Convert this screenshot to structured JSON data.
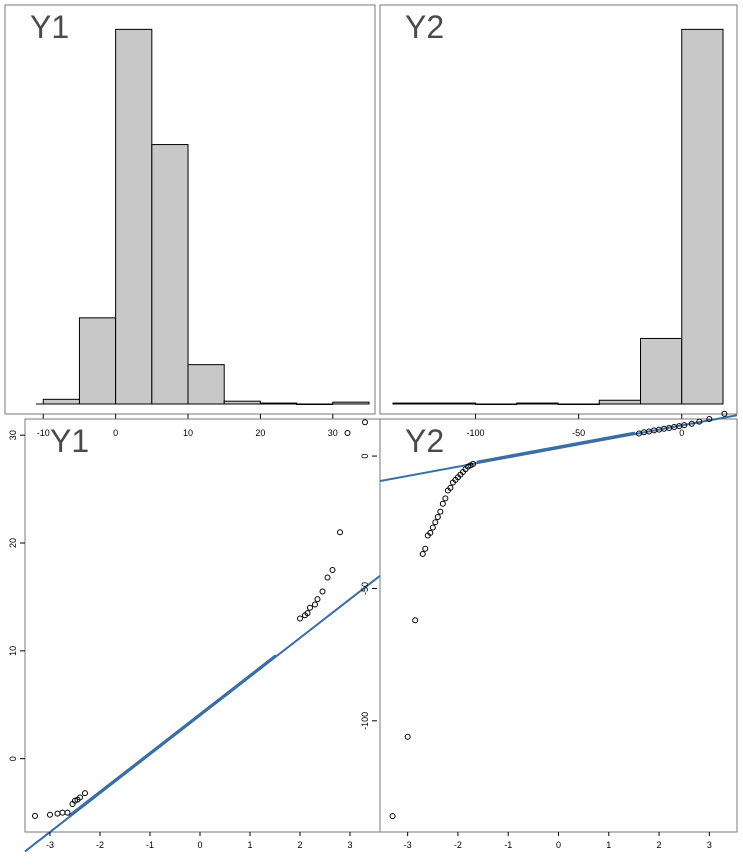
{
  "chart_data": [
    {
      "type": "bar",
      "panel": "histogram",
      "title": "Y1",
      "x_ticks": [
        -10,
        0,
        10,
        20,
        30
      ],
      "xlim": [
        -11,
        35
      ],
      "ylim": [
        0,
        410
      ],
      "bins": [
        {
          "from": -5,
          "to": 0,
          "count": 92
        },
        {
          "from": 0,
          "to": 5,
          "count": 400
        },
        {
          "from": 5,
          "to": 10,
          "count": 277
        },
        {
          "from": 10,
          "to": 15,
          "count": 42
        },
        {
          "from": 15,
          "to": 20,
          "count": 3
        },
        {
          "from": 20,
          "to": 25,
          "count": 1
        },
        {
          "from": 25,
          "to": 30,
          "count": 0
        },
        {
          "from": 30,
          "to": 35,
          "count": 2
        },
        {
          "from": -10,
          "to": -5,
          "count": 5
        }
      ]
    },
    {
      "type": "bar",
      "panel": "histogram",
      "title": "Y2",
      "x_ticks": [
        -100,
        -50,
        0
      ],
      "xlim": [
        -140,
        20
      ],
      "ylim": [
        0,
        410
      ],
      "bins": [
        {
          "from": -140,
          "to": -120,
          "count": 1
        },
        {
          "from": -120,
          "to": -100,
          "count": 1
        },
        {
          "from": -100,
          "to": -80,
          "count": 0
        },
        {
          "from": -80,
          "to": -60,
          "count": 1
        },
        {
          "from": -60,
          "to": -40,
          "count": 0
        },
        {
          "from": -40,
          "to": -20,
          "count": 4
        },
        {
          "from": -20,
          "to": 0,
          "count": 70
        },
        {
          "from": 0,
          "to": 20,
          "count": 400
        }
      ]
    },
    {
      "type": "scatter",
      "panel": "qq",
      "title": "Y1",
      "x_ticks": [
        -3,
        -2,
        -1,
        0,
        1,
        2,
        3
      ],
      "y_ticks": [
        0,
        10,
        20,
        30
      ],
      "xlim": [
        -3.5,
        3.6
      ],
      "ylim": [
        -6.8,
        31.5
      ],
      "reference_line": {
        "intercept": 4.0,
        "slope": 3.6
      },
      "band": {
        "x_from": -2.6,
        "x_to": 1.5
      },
      "points": [
        [
          -3.3,
          -5.3
        ],
        [
          -3.0,
          -5.2
        ],
        [
          -2.85,
          -5.1
        ],
        [
          -2.75,
          -5.0
        ],
        [
          -2.65,
          -5.0
        ],
        [
          -2.55,
          -4.2
        ],
        [
          -2.5,
          -3.9
        ],
        [
          -2.45,
          -3.8
        ],
        [
          -2.4,
          -3.6
        ],
        [
          -2.3,
          -3.2
        ],
        [
          2.0,
          13.0
        ],
        [
          2.1,
          13.3
        ],
        [
          2.15,
          13.5
        ],
        [
          2.2,
          14.0
        ],
        [
          2.3,
          14.3
        ],
        [
          2.35,
          14.8
        ],
        [
          2.45,
          15.5
        ],
        [
          2.55,
          16.8
        ],
        [
          2.65,
          17.5
        ],
        [
          2.8,
          21.0
        ],
        [
          2.95,
          30.2
        ],
        [
          3.3,
          31.2
        ]
      ]
    },
    {
      "type": "scatter",
      "panel": "qq",
      "title": "Y2",
      "x_ticks": [
        -3,
        -2,
        -1,
        0,
        1,
        2,
        3
      ],
      "y_ticks": [
        -100,
        -50,
        0
      ],
      "xlim": [
        -3.55,
        3.55
      ],
      "ylim": [
        -142,
        14
      ],
      "reference_line": {
        "intercept": 3.0,
        "slope": 3.5
      },
      "band": {
        "x_from": -1.6,
        "x_to": 1.5
      },
      "points": [
        [
          -3.3,
          -136
        ],
        [
          -3.0,
          -106
        ],
        [
          -2.85,
          -62
        ],
        [
          -2.7,
          -37
        ],
        [
          -2.65,
          -35
        ],
        [
          -2.6,
          -30
        ],
        [
          -2.55,
          -29
        ],
        [
          -2.5,
          -27
        ],
        [
          -2.45,
          -25
        ],
        [
          -2.4,
          -23
        ],
        [
          -2.35,
          -21
        ],
        [
          -2.3,
          -18
        ],
        [
          -2.25,
          -16
        ],
        [
          -2.2,
          -13
        ],
        [
          -2.15,
          -12
        ],
        [
          -2.1,
          -10
        ],
        [
          -2.05,
          -9
        ],
        [
          -2.0,
          -8
        ],
        [
          -1.95,
          -7
        ],
        [
          -1.9,
          -6
        ],
        [
          -1.85,
          -5
        ],
        [
          -1.8,
          -4
        ],
        [
          -1.75,
          -3.5
        ],
        [
          -1.7,
          -3
        ],
        [
          1.6,
          8.5
        ],
        [
          1.7,
          9.0
        ],
        [
          1.8,
          9.3
        ],
        [
          1.9,
          9.7
        ],
        [
          2.0,
          10.0
        ],
        [
          2.1,
          10.3
        ],
        [
          2.2,
          10.6
        ],
        [
          2.3,
          11.0
        ],
        [
          2.4,
          11.3
        ],
        [
          2.5,
          11.7
        ],
        [
          2.65,
          12.2
        ],
        [
          2.8,
          13.0
        ],
        [
          3.0,
          14.0
        ],
        [
          3.3,
          16.0
        ]
      ]
    }
  ]
}
